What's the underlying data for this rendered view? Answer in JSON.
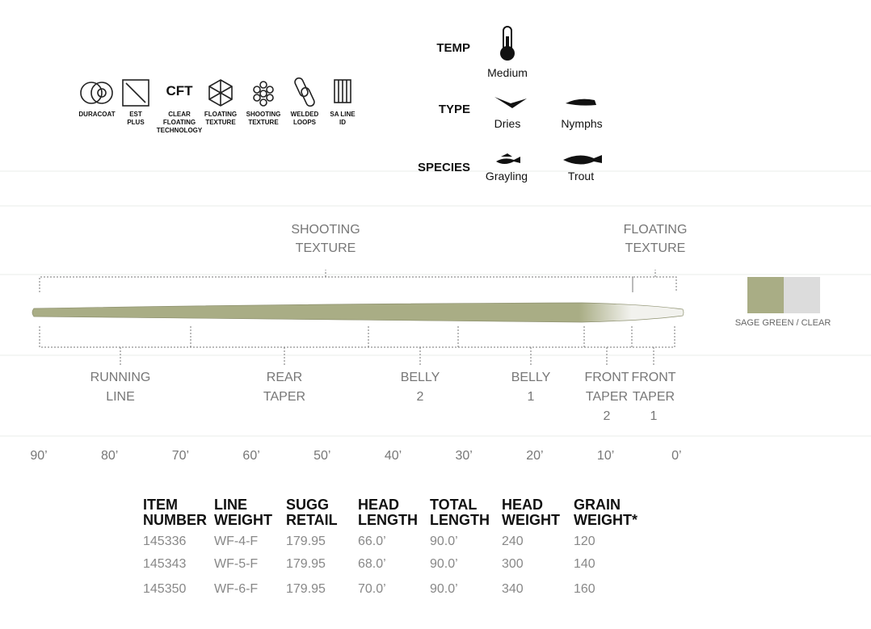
{
  "features": [
    {
      "lines": [
        "DURACOAT"
      ]
    },
    {
      "lines": [
        "EST",
        "PLUS"
      ]
    },
    {
      "icon_text": "CFT",
      "lines": [
        "CLEAR",
        "FLOATING",
        "TECHNOLOGY"
      ]
    },
    {
      "lines": [
        "FLOATING",
        "TEXTURE"
      ]
    },
    {
      "lines": [
        "SHOOTING",
        "TEXTURE"
      ]
    },
    {
      "lines": [
        "WELDED",
        "LOOPS"
      ]
    },
    {
      "lines": [
        "SA LINE",
        "ID"
      ]
    }
  ],
  "specs": [
    {
      "label": "TEMP",
      "options": [
        "Medium"
      ]
    },
    {
      "label": "TYPE",
      "options": [
        "Dries",
        "Nymphs"
      ]
    },
    {
      "label": "SPECIES",
      "options": [
        "Grayling",
        "Trout"
      ]
    }
  ],
  "textures": [
    {
      "lines": [
        "SHOOTING",
        "TEXTURE"
      ]
    },
    {
      "lines": [
        "FLOATING",
        "TEXTURE"
      ]
    }
  ],
  "color_label": "SAGE GREEN / CLEAR",
  "sections": [
    {
      "lines": [
        "RUNNING",
        "LINE"
      ]
    },
    {
      "lines": [
        "REAR",
        "TAPER"
      ]
    },
    {
      "lines": [
        "BELLY",
        "2"
      ]
    },
    {
      "lines": [
        "BELLY",
        "1"
      ]
    },
    {
      "lines": [
        "FRONT",
        "TAPER",
        "2"
      ]
    },
    {
      "lines": [
        "FRONT",
        "TAPER",
        "1"
      ]
    }
  ],
  "scale": [
    "90’",
    "80’",
    "70’",
    "60’",
    "50’",
    "40’",
    "30’",
    "20’",
    "10’",
    "0’"
  ],
  "table": {
    "headers": [
      [
        "ITEM",
        "NUMBER"
      ],
      [
        "LINE",
        "WEIGHT"
      ],
      [
        "SUGG",
        "RETAIL"
      ],
      [
        "HEAD",
        "LENGTH"
      ],
      [
        "TOTAL",
        "LENGTH"
      ],
      [
        "HEAD",
        "WEIGHT"
      ],
      [
        "GRAIN",
        "WEIGHT*"
      ]
    ],
    "rows": [
      [
        "145336",
        "WF-4-F",
        "179.95",
        "66.0’",
        "90.0’",
        "240",
        "120"
      ],
      [
        "145343",
        "WF-5-F",
        "179.95",
        "68.0’",
        "90.0’",
        "300",
        "140"
      ],
      [
        "145350",
        "WF-6-F",
        "179.95",
        "70.0’",
        "90.0’",
        "340",
        "160"
      ]
    ]
  }
}
